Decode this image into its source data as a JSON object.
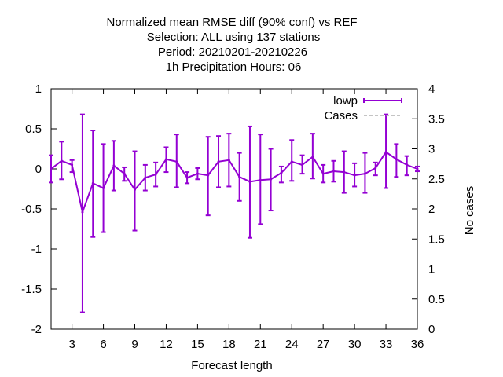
{
  "chart_data": {
    "type": "line",
    "title_lines": [
      "Normalized mean RMSE diff (90% conf) vs REF",
      "Selection: ALL using   137 stations",
      "Period: 20210201-20210226",
      "1h Precipitation   Hours:  06"
    ],
    "xlabel": "Forecast length",
    "ylabel": "",
    "y2label": "No cases",
    "xlim": [
      1,
      36
    ],
    "ylim": [
      -2,
      1
    ],
    "y2lim": [
      0,
      4
    ],
    "xticks": [
      3,
      6,
      9,
      12,
      15,
      18,
      21,
      24,
      27,
      30,
      33,
      36
    ],
    "yticks": [
      -2,
      -1.5,
      -1,
      -0.5,
      0,
      0.5,
      1
    ],
    "ytick_labels": [
      "-2",
      "-1.5",
      "-1",
      "-0.5",
      "0",
      "0.5",
      "1"
    ],
    "y2ticks": [
      0,
      0.5,
      1,
      1.5,
      2,
      2.5,
      3,
      3.5,
      4
    ],
    "y2tick_labels": [
      "0",
      "0.5",
      "1",
      "1.5",
      "2",
      "2.5",
      "3",
      "3.5",
      "4"
    ],
    "legend_position": "top-right",
    "grid": false,
    "series": [
      {
        "name": "lowp",
        "color": "#9400d3",
        "style": "line-errorbars",
        "x": [
          1,
          2,
          3,
          4,
          5,
          6,
          7,
          8,
          9,
          10,
          11,
          12,
          13,
          14,
          15,
          16,
          17,
          18,
          19,
          20,
          21,
          22,
          23,
          24,
          25,
          26,
          27,
          28,
          29,
          30,
          31,
          32,
          33,
          34,
          35,
          36
        ],
        "y": [
          0.0,
          0.1,
          0.05,
          -0.54,
          -0.18,
          -0.24,
          0.04,
          -0.06,
          -0.26,
          -0.11,
          -0.07,
          0.12,
          0.09,
          -0.11,
          -0.06,
          -0.08,
          0.09,
          0.11,
          -0.1,
          -0.16,
          -0.14,
          -0.13,
          -0.05,
          0.09,
          0.05,
          0.15,
          -0.06,
          -0.03,
          -0.04,
          -0.08,
          -0.06,
          0.01,
          0.21,
          0.12,
          0.05,
          0.0
        ],
        "y_low": [
          -0.17,
          -0.13,
          -0.04,
          -1.79,
          -0.85,
          -0.79,
          -0.27,
          -0.15,
          -0.77,
          -0.27,
          -0.22,
          -0.04,
          -0.23,
          -0.18,
          -0.13,
          -0.58,
          -0.23,
          -0.22,
          -0.4,
          -0.86,
          -0.69,
          -0.52,
          -0.17,
          -0.15,
          -0.06,
          -0.12,
          -0.17,
          -0.16,
          -0.3,
          -0.22,
          -0.3,
          -0.08,
          -0.24,
          -0.1,
          -0.08,
          -0.03
        ],
        "y_high": [
          0.17,
          0.34,
          0.11,
          0.68,
          0.48,
          0.31,
          0.35,
          0.02,
          0.22,
          0.05,
          0.08,
          0.27,
          0.43,
          -0.04,
          0.01,
          0.4,
          0.41,
          0.44,
          0.2,
          0.53,
          0.43,
          0.25,
          0.03,
          0.36,
          0.17,
          0.44,
          0.05,
          0.1,
          0.22,
          0.07,
          0.2,
          0.08,
          0.68,
          0.31,
          0.16,
          0.03
        ]
      },
      {
        "name": "Cases",
        "color": "#a0a0a0",
        "style": "dashed",
        "axis": "y2",
        "x": [],
        "y": []
      }
    ]
  }
}
